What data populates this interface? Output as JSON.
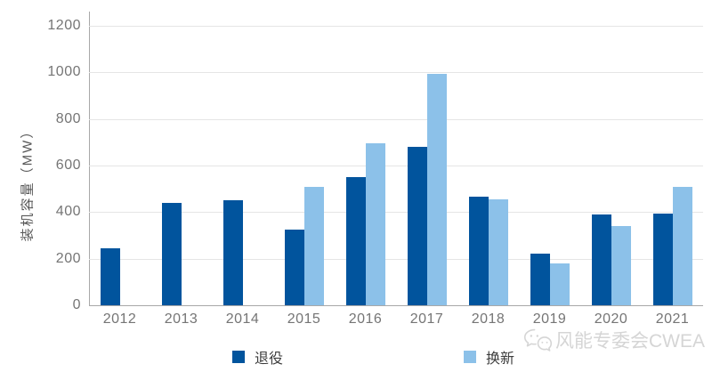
{
  "chart_data": {
    "type": "bar",
    "title": "",
    "xlabel": "",
    "ylabel": "装机容量（MW）",
    "categories": [
      "2012",
      "2013",
      "2014",
      "2015",
      "2016",
      "2017",
      "2018",
      "2019",
      "2020",
      "2021"
    ],
    "series": [
      {
        "id": "retired",
        "name": "退役",
        "color": "#01549d",
        "values": [
          245,
          440,
          450,
          325,
          550,
          680,
          465,
          220,
          390,
          395
        ]
      },
      {
        "id": "renewed",
        "name": "换新",
        "color": "#8cc1e9",
        "values": [
          null,
          null,
          null,
          510,
          695,
          995,
          455,
          180,
          340,
          510
        ]
      }
    ],
    "ylim": [
      0,
      1200
    ],
    "yticks": [
      0,
      200,
      400,
      600,
      800,
      1000,
      1200
    ],
    "grid": true,
    "legend_position": "bottom"
  },
  "watermark": {
    "icon": "wechat-icon",
    "text": "风能专委会CWEA"
  },
  "colors": {
    "grid": "#e5e5e5",
    "axis": "#a8a8a8",
    "tick_text": "#757575",
    "axis_label_text": "#595959",
    "legend_text": "#3d3d3d",
    "watermark": "#d5d5d5"
  }
}
